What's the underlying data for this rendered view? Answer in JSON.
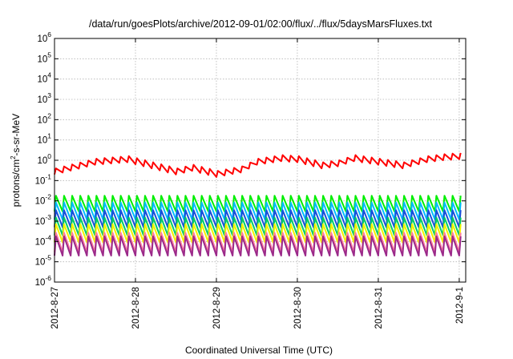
{
  "chart_data": {
    "type": "line",
    "title": "/data/run/goesPlots/archive/2012-09-01/02:00/flux/../flux/5daysMarsFluxes.txt",
    "xlabel": "Coordinated Universal Time (UTC)",
    "ylabel": "protons/cm2-s-sr-MeV",
    "ylabel_parts": {
      "base": "protons/cm",
      "sup": "2",
      "rest": "-s-sr-MeV"
    },
    "y_scale": "log",
    "ylim": [
      1e-06,
      1000000.0
    ],
    "y_ticks": [
      {
        "exp": "-6"
      },
      {
        "exp": "-5"
      },
      {
        "exp": "-4"
      },
      {
        "exp": "-3"
      },
      {
        "exp": "-2"
      },
      {
        "exp": "-1"
      },
      {
        "exp": "0"
      },
      {
        "exp": "1"
      },
      {
        "exp": "2"
      },
      {
        "exp": "3"
      },
      {
        "exp": "4"
      },
      {
        "exp": "5"
      },
      {
        "exp": "6"
      }
    ],
    "y_tick_base": "10",
    "xlim": [
      "2012-08-27",
      "2012-09-01 02:00"
    ],
    "x_ticks": [
      "2012-8-27",
      "2012-8-28",
      "2012-8-29",
      "2012-8-30",
      "2012-8-31",
      "2012-9-1"
    ],
    "grid": true,
    "legend": "none",
    "series": [
      {
        "color": "#ff0000",
        "pattern": "sawtooth",
        "period_days": 0.1,
        "low": [
          [
            0,
            0.2
          ],
          [
            0.5,
            0.6
          ],
          [
            0.9,
            0.8
          ],
          [
            1.2,
            0.4
          ],
          [
            1.5,
            0.2
          ],
          [
            1.7,
            0.3
          ],
          [
            2.0,
            0.15
          ],
          [
            2.3,
            0.25
          ],
          [
            2.5,
            0.6
          ],
          [
            2.8,
            0.9
          ],
          [
            3.0,
            0.8
          ],
          [
            3.3,
            0.4
          ],
          [
            3.5,
            0.5
          ],
          [
            3.7,
            0.9
          ],
          [
            4.0,
            0.6
          ],
          [
            4.3,
            0.4
          ],
          [
            4.6,
            0.8
          ],
          [
            4.8,
            1.0
          ],
          [
            5.08,
            1.2
          ]
        ],
        "amp": 2.0
      },
      {
        "color": "#00ee00",
        "pattern": "sawtooth",
        "period_days": 0.1,
        "low": [
          [
            0,
            0.003
          ],
          [
            5.08,
            0.003
          ]
        ],
        "amp": 6.0
      },
      {
        "color": "#00bbff",
        "pattern": "sawtooth",
        "period_days": 0.1,
        "low": [
          [
            0,
            0.0012
          ],
          [
            5.08,
            0.0012
          ]
        ],
        "amp": 7.0
      },
      {
        "color": "#1a4fd8",
        "pattern": "sawtooth",
        "period_days": 0.1,
        "low": [
          [
            0,
            0.0005
          ],
          [
            5.08,
            0.0005
          ]
        ],
        "amp": 7.0
      },
      {
        "color": "#00cc66",
        "pattern": "sawtooth",
        "period_days": 0.1,
        "low": [
          [
            0,
            0.0002
          ],
          [
            5.08,
            0.0002
          ]
        ],
        "amp": 7.5
      },
      {
        "color": "#f2f200",
        "pattern": "sawtooth",
        "period_days": 0.1,
        "low": [
          [
            0,
            9e-05
          ],
          [
            5.08,
            9e-05
          ]
        ],
        "amp": 8.0
      },
      {
        "color": "#ff7f9f",
        "pattern": "sawtooth",
        "period_days": 0.1,
        "low": [
          [
            0,
            3e-05
          ],
          [
            5.08,
            3e-05
          ]
        ],
        "amp": 9.0
      },
      {
        "color": "#9b2a8a",
        "pattern": "sawtooth",
        "period_days": 0.1,
        "low": [
          [
            0,
            2e-05
          ],
          [
            5.08,
            2e-05
          ]
        ],
        "amp": 9.0
      }
    ]
  }
}
